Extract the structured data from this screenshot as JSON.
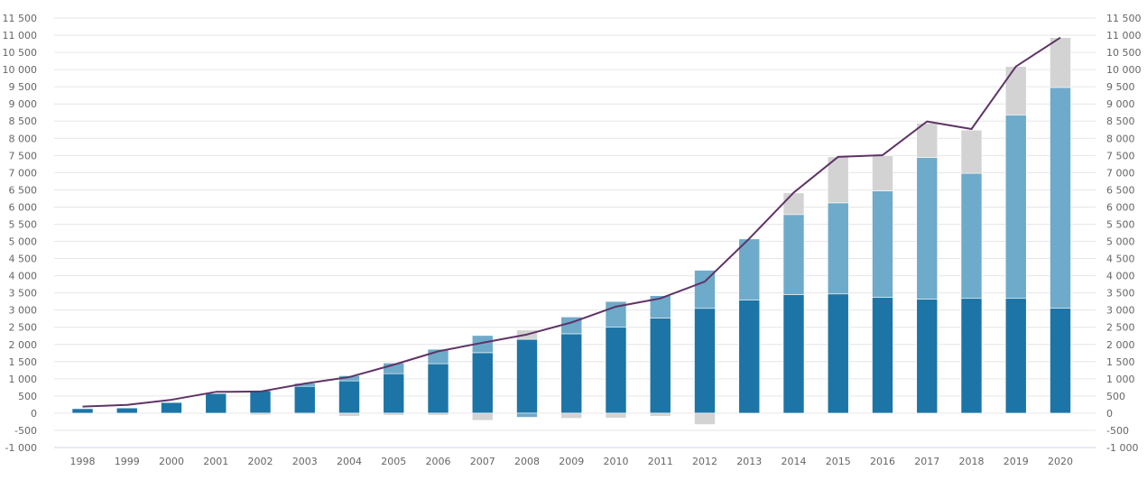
{
  "chart_data": {
    "type": "bar",
    "stacked": true,
    "title": "",
    "xlabel": "",
    "ylabel": "",
    "ylim": [
      -1000,
      11500
    ],
    "y_tick_step": 500,
    "y_ticks_both_sides": true,
    "grid": true,
    "legend": "none",
    "categories": [
      "1998",
      "1999",
      "2000",
      "2001",
      "2002",
      "2003",
      "2004",
      "2005",
      "2006",
      "2007",
      "2008",
      "2009",
      "2010",
      "2011",
      "2012",
      "2013",
      "2014",
      "2015",
      "2016",
      "2017",
      "2018",
      "2019",
      "2020"
    ],
    "series": [
      {
        "kind": "bar",
        "color": "#1c75a6",
        "values": [
          130,
          150,
          310,
          570,
          650,
          780,
          940,
          1150,
          1440,
          1760,
          2150,
          2310,
          2500,
          2770,
          3050,
          3290,
          3450,
          3470,
          3370,
          3320,
          3340,
          3340,
          3060
        ]
      },
      {
        "kind": "bar",
        "color": "#6eaaca",
        "values": [
          0,
          0,
          0,
          0,
          0,
          90,
          150,
          310,
          420,
          500,
          0,
          490,
          750,
          650,
          1110,
          1780,
          2330,
          2650,
          3100,
          4120,
          3640,
          5340,
          6420
        ]
      },
      {
        "kind": "bar",
        "color": "#d3d3d3",
        "values": [
          0,
          0,
          0,
          0,
          -50,
          -30,
          -90,
          -60,
          -60,
          -210,
          -120,
          -150,
          -140,
          -90,
          -330,
          0,
          630,
          1340,
          1020,
          1000,
          1260,
          1410,
          1450
        ],
        "positive_values_for_2008": 270
      },
      {
        "kind": "line",
        "color": "#5e3466",
        "values": [
          190,
          240,
          390,
          620,
          630,
          860,
          1050,
          1410,
          1800,
          2050,
          2290,
          2640,
          3100,
          3340,
          3830,
          5080,
          6420,
          7460,
          7510,
          8490,
          8270,
          10090,
          10930
        ]
      }
    ]
  }
}
